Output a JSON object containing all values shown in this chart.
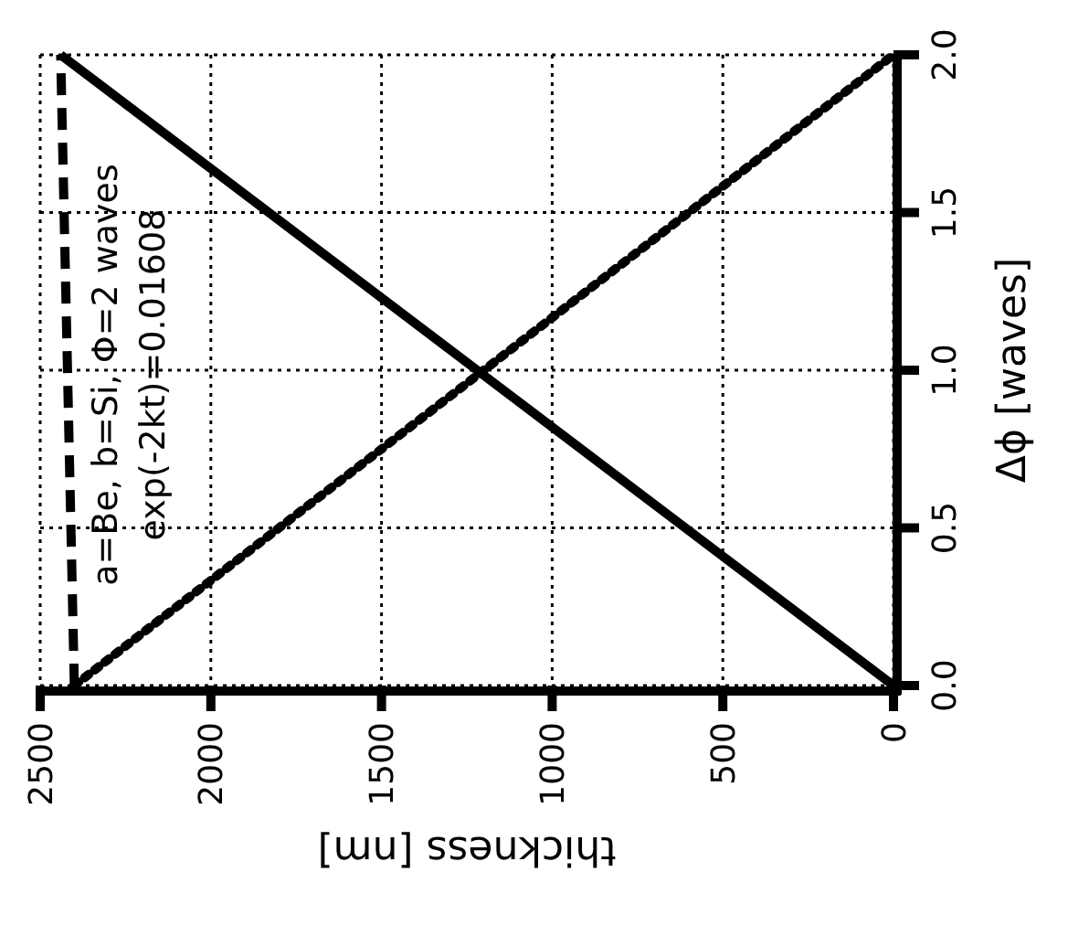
{
  "chart_data": {
    "type": "line",
    "xlabel": "thickness [nm]",
    "ylabel": "Δϕ [waves]",
    "series": [
      {
        "color": "#000000",
        "line_style": "solid",
        "x": [
          0,
          2440
        ],
        "values": [
          0,
          2
        ]
      },
      {
        "color": "#000000",
        "line_style": "dotted",
        "x": [
          2400,
          0
        ],
        "values": [
          0,
          2
        ]
      },
      {
        "color": "#000000",
        "line_style": "dashed",
        "x": [
          2400,
          2440
        ],
        "values": [
          0,
          2
        ]
      }
    ],
    "xlim": [
      2500,
      0
    ],
    "xticks": [
      2500,
      2000,
      1500,
      1000,
      500,
      0
    ],
    "ylim": [
      0,
      2
    ],
    "yticks": [
      {
        "value": 0,
        "label": "0.0"
      },
      {
        "value": 0.5,
        "label": "0.5"
      },
      {
        "value": 1,
        "label": "1.0"
      },
      {
        "value": 1.5,
        "label": "1.5"
      },
      {
        "value": 2,
        "label": "2.0"
      }
    ],
    "grid": true,
    "annotations": [
      "a=Be, b=Si, Φ=2 waves",
      "exp(-2kt)=0.01608"
    ]
  }
}
